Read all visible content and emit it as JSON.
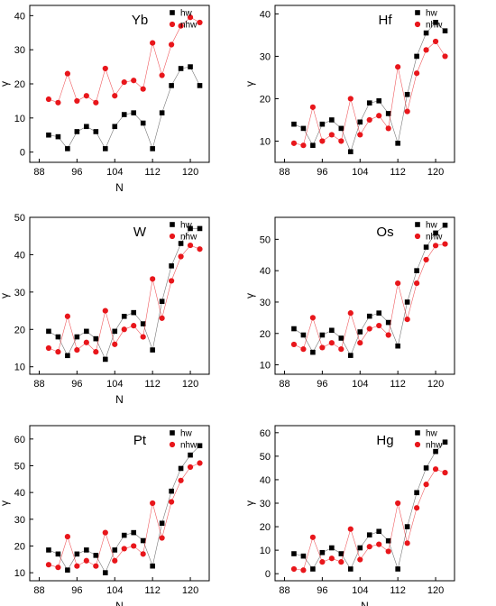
{
  "chart_data": [
    {
      "type": "line",
      "title": "Yb",
      "xlabel": "N",
      "ylabel": "γ",
      "xlim": [
        86,
        124
      ],
      "ylim": [
        -3,
        43
      ],
      "xticks": [
        88,
        96,
        104,
        112,
        120
      ],
      "yticks": [
        0,
        10,
        20,
        30,
        40
      ],
      "legend_position": "top-right",
      "series": [
        {
          "name": "hw",
          "marker": "square",
          "color": "#000000",
          "x": [
            90,
            92,
            94,
            96,
            98,
            100,
            102,
            104,
            106,
            108,
            110,
            112,
            114,
            116,
            118,
            120,
            122
          ],
          "y": [
            5,
            4.5,
            1,
            6,
            7.5,
            6,
            1,
            7.5,
            11,
            11.5,
            8.5,
            1,
            11.5,
            19.5,
            24.5,
            25,
            19.5
          ]
        },
        {
          "name": "nhw",
          "marker": "circle",
          "color": "#e8161b",
          "x": [
            90,
            92,
            94,
            96,
            98,
            100,
            102,
            104,
            106,
            108,
            110,
            112,
            114,
            116,
            118,
            120,
            122
          ],
          "y": [
            15.5,
            14.5,
            23,
            15,
            16.5,
            14.5,
            24.5,
            16.5,
            20.5,
            21,
            18.5,
            32,
            22.5,
            31.5,
            37,
            39.5,
            38
          ]
        }
      ]
    },
    {
      "type": "line",
      "title": "Hf",
      "xlabel": "",
      "ylabel": "γ",
      "xlim": [
        86,
        124
      ],
      "ylim": [
        5,
        42
      ],
      "xticks": [
        88,
        96,
        104,
        112,
        120
      ],
      "yticks": [
        10,
        20,
        30,
        40
      ],
      "legend_position": "top-right",
      "series": [
        {
          "name": "hw",
          "marker": "square",
          "color": "#000000",
          "x": [
            90,
            92,
            94,
            96,
            98,
            100,
            102,
            104,
            106,
            108,
            110,
            112,
            114,
            116,
            118,
            120,
            122
          ],
          "y": [
            14,
            13,
            9,
            14,
            15,
            13,
            7.5,
            14.5,
            19,
            19.5,
            16.5,
            9.5,
            21,
            30,
            35.5,
            38,
            36
          ]
        },
        {
          "name": "nhw",
          "marker": "circle",
          "color": "#e8161b",
          "x": [
            90,
            92,
            94,
            96,
            98,
            100,
            102,
            104,
            106,
            108,
            110,
            112,
            114,
            116,
            118,
            120,
            122
          ],
          "y": [
            9.5,
            9,
            18,
            10,
            11.5,
            10,
            20,
            11.5,
            15,
            16,
            13,
            27.5,
            17,
            26,
            31.5,
            33.5,
            30
          ]
        }
      ]
    },
    {
      "type": "line",
      "title": "W",
      "xlabel": "N",
      "ylabel": "γ",
      "xlim": [
        86,
        124
      ],
      "ylim": [
        8,
        50
      ],
      "xticks": [
        88,
        96,
        104,
        112,
        120
      ],
      "yticks": [
        10,
        20,
        30,
        40,
        50
      ],
      "legend_position": "top-right",
      "series": [
        {
          "name": "hw",
          "marker": "square",
          "color": "#000000",
          "x": [
            90,
            92,
            94,
            96,
            98,
            100,
            102,
            104,
            106,
            108,
            110,
            112,
            114,
            116,
            118,
            120,
            122
          ],
          "y": [
            19.5,
            18,
            13,
            18,
            19.5,
            17.5,
            12,
            19.5,
            23.5,
            24.5,
            21.5,
            14.5,
            27.5,
            37,
            43,
            47,
            47
          ]
        },
        {
          "name": "nhw",
          "marker": "circle",
          "color": "#e8161b",
          "x": [
            90,
            92,
            94,
            96,
            98,
            100,
            102,
            104,
            106,
            108,
            110,
            112,
            114,
            116,
            118,
            120,
            122
          ],
          "y": [
            15,
            14,
            23.5,
            14.5,
            16.5,
            14,
            25,
            16,
            20,
            21,
            18,
            33.5,
            23,
            33,
            39.5,
            42.5,
            41.5
          ]
        }
      ]
    },
    {
      "type": "line",
      "title": "Os",
      "xlabel": "",
      "ylabel": "γ",
      "xlim": [
        86,
        124
      ],
      "ylim": [
        7,
        57
      ],
      "xticks": [
        88,
        96,
        104,
        112,
        120
      ],
      "yticks": [
        10,
        20,
        30,
        40,
        50
      ],
      "legend_position": "top-right",
      "series": [
        {
          "name": "hw",
          "marker": "square",
          "color": "#000000",
          "x": [
            90,
            92,
            94,
            96,
            98,
            100,
            102,
            104,
            106,
            108,
            110,
            112,
            114,
            116,
            118,
            120,
            122
          ],
          "y": [
            21.5,
            19.5,
            14,
            19.5,
            21,
            18.5,
            13,
            20.5,
            25.5,
            26.5,
            23.5,
            16,
            30,
            40,
            47.5,
            52,
            54.5
          ]
        },
        {
          "name": "nhw",
          "marker": "circle",
          "color": "#e8161b",
          "x": [
            90,
            92,
            94,
            96,
            98,
            100,
            102,
            104,
            106,
            108,
            110,
            112,
            114,
            116,
            118,
            120,
            122
          ],
          "y": [
            16.5,
            15,
            25,
            15.5,
            17,
            15,
            26.5,
            17,
            21.5,
            22.5,
            19.5,
            36,
            24.5,
            36,
            43.5,
            48,
            48.5
          ]
        }
      ]
    },
    {
      "type": "line",
      "title": "Pt",
      "xlabel": "N",
      "ylabel": "γ",
      "xlim": [
        86,
        124
      ],
      "ylim": [
        7,
        65
      ],
      "xticks": [
        88,
        96,
        104,
        112,
        120
      ],
      "yticks": [
        10,
        20,
        30,
        40,
        50,
        60
      ],
      "legend_position": "top-right",
      "series": [
        {
          "name": "hw",
          "marker": "square",
          "color": "#000000",
          "x": [
            90,
            92,
            94,
            96,
            98,
            100,
            102,
            104,
            106,
            108,
            110,
            112,
            114,
            116,
            118,
            120,
            122
          ],
          "y": [
            18.5,
            17,
            11,
            17,
            18.5,
            16.5,
            10,
            18.5,
            24,
            25,
            22,
            12.5,
            28.5,
            40.5,
            49,
            54,
            57.5
          ]
        },
        {
          "name": "nhw",
          "marker": "circle",
          "color": "#e8161b",
          "x": [
            90,
            92,
            94,
            96,
            98,
            100,
            102,
            104,
            106,
            108,
            110,
            112,
            114,
            116,
            118,
            120,
            122
          ],
          "y": [
            13,
            12,
            23.5,
            12.5,
            14.5,
            12.5,
            25,
            14.5,
            19,
            20,
            17,
            36,
            23,
            36.5,
            44.5,
            49.5,
            51
          ]
        }
      ]
    },
    {
      "type": "line",
      "title": "Hg",
      "xlabel": "N",
      "ylabel": "γ",
      "xlim": [
        86,
        124
      ],
      "ylim": [
        -3,
        63
      ],
      "xticks": [
        88,
        96,
        104,
        112,
        120
      ],
      "yticks": [
        0,
        10,
        20,
        30,
        40,
        50,
        60
      ],
      "legend_position": "top-right",
      "series": [
        {
          "name": "hw",
          "marker": "square",
          "color": "#000000",
          "x": [
            90,
            92,
            94,
            96,
            98,
            100,
            102,
            104,
            106,
            108,
            110,
            112,
            114,
            116,
            118,
            120,
            122
          ],
          "y": [
            8.5,
            7.5,
            2,
            9,
            11,
            8.5,
            2,
            11,
            16.5,
            18,
            14,
            2,
            20,
            34.5,
            45,
            52,
            56
          ]
        },
        {
          "name": "nhw",
          "marker": "circle",
          "color": "#e8161b",
          "x": [
            90,
            92,
            94,
            96,
            98,
            100,
            102,
            104,
            106,
            108,
            110,
            112,
            114,
            116,
            118,
            120,
            122
          ],
          "y": [
            2,
            1.5,
            15.5,
            5,
            6.5,
            5,
            19,
            6,
            11.5,
            12.5,
            9.5,
            30,
            13,
            28,
            38,
            44.5,
            43
          ]
        }
      ]
    }
  ]
}
